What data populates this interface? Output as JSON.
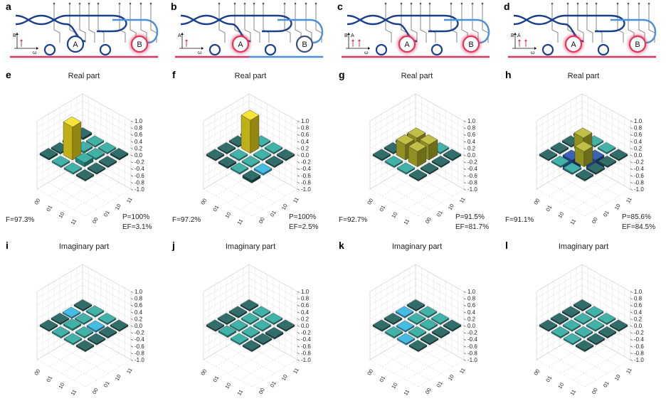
{
  "colors": {
    "teal": "#27a79c",
    "teal_dark": "#155a55",
    "yellow": "#f5e11c",
    "olive": "#b8b72a",
    "blue": "#1f4fa8",
    "cyan": "#2ab3e0",
    "red_glow": "#e0365c",
    "light_blue_wg": "#4d8fd6",
    "dark_blue_wg": "#1c3f8c"
  },
  "schematics": [
    {
      "label": "a",
      "ring_a": "A",
      "ring_b": "B",
      "excited": "B",
      "axis_letters": [
        "B",
        "ω"
      ]
    },
    {
      "label": "b",
      "ring_a": "A",
      "ring_b": "B",
      "excited": "A",
      "axis_letters": [
        "A",
        "ω"
      ]
    },
    {
      "label": "c",
      "ring_a": "A",
      "ring_b": "B",
      "excited": "AB",
      "axis_letters": [
        "B",
        "A",
        "ω"
      ]
    },
    {
      "label": "d",
      "ring_a": "A",
      "ring_b": "B",
      "excited": "AB",
      "axis_letters": [
        "B",
        "A",
        "ω"
      ]
    }
  ],
  "axis": {
    "z_ticks": [
      "1.0",
      "0.8",
      "0.6",
      "0.4",
      "0.2",
      "0.0",
      "-0.2",
      "-0.4",
      "-0.6",
      "-0.8",
      "-1.0"
    ],
    "basis": [
      "00",
      "01",
      "10",
      "11"
    ]
  },
  "real_panels": [
    {
      "label": "e",
      "title": "Real part",
      "fidelity": "F=97.3%",
      "purity": "P=100%",
      "ef": "EF=3.1%"
    },
    {
      "label": "f",
      "title": "Real part",
      "fidelity": "F=97.2%",
      "purity": "P=100%",
      "ef": "EF=2.5%"
    },
    {
      "label": "g",
      "title": "Real part",
      "fidelity": "F=92.7%",
      "purity": "P=91.5%",
      "ef": "EF=81.7%"
    },
    {
      "label": "h",
      "title": "Real part",
      "fidelity": "F=91.1%",
      "purity": "P=85.6%",
      "ef": "EF=84.5%"
    }
  ],
  "imag_panels": [
    {
      "label": "i",
      "title": "Imaginary part"
    },
    {
      "label": "j",
      "title": "Imaginary part"
    },
    {
      "label": "k",
      "title": "Imaginary part"
    },
    {
      "label": "l",
      "title": "Imaginary part"
    }
  ],
  "chart_data": [
    {
      "type": "bar3d",
      "panel": "e",
      "title": "Real part",
      "rows": [
        "00",
        "01",
        "10",
        "11"
      ],
      "cols": [
        "00",
        "01",
        "10",
        "11"
      ],
      "zlim": [
        -1,
        1
      ],
      "values": [
        [
          0.06,
          0,
          0,
          0.05
        ],
        [
          0,
          0.05,
          0.05,
          0
        ],
        [
          0,
          0.97,
          0.12,
          0
        ],
        [
          0.05,
          0,
          0,
          0.03
        ]
      ]
    },
    {
      "type": "bar3d",
      "panel": "f",
      "title": "Real part",
      "rows": [
        "00",
        "01",
        "10",
        "11"
      ],
      "cols": [
        "00",
        "01",
        "10",
        "11"
      ],
      "zlim": [
        -1,
        1
      ],
      "values": [
        [
          0,
          0,
          0,
          0
        ],
        [
          0,
          0.97,
          0,
          0
        ],
        [
          0,
          0,
          0,
          -0.05
        ],
        [
          0,
          -0.05,
          0,
          -0.08
        ]
      ]
    },
    {
      "type": "bar3d",
      "panel": "g",
      "title": "Real part",
      "rows": [
        "00",
        "01",
        "10",
        "11"
      ],
      "cols": [
        "00",
        "01",
        "10",
        "11"
      ],
      "zlim": [
        -1,
        1
      ],
      "values": [
        [
          0,
          0,
          0,
          0
        ],
        [
          0,
          0.45,
          0.45,
          0
        ],
        [
          0,
          0.45,
          0.45,
          0
        ],
        [
          0,
          0,
          0,
          0
        ]
      ]
    },
    {
      "type": "bar3d",
      "panel": "h",
      "title": "Real part",
      "rows": [
        "00",
        "01",
        "10",
        "11"
      ],
      "cols": [
        "00",
        "01",
        "10",
        "11"
      ],
      "zlim": [
        -1,
        1
      ],
      "values": [
        [
          0,
          0,
          0,
          0
        ],
        [
          0,
          0.45,
          -0.42,
          0
        ],
        [
          0,
          -0.42,
          0.45,
          0
        ],
        [
          0,
          0,
          0,
          0
        ]
      ]
    },
    {
      "type": "bar3d",
      "panel": "i",
      "title": "Imaginary part",
      "rows": [
        "00",
        "01",
        "10",
        "11"
      ],
      "cols": [
        "00",
        "01",
        "10",
        "11"
      ],
      "zlim": [
        -1,
        1
      ],
      "values": [
        [
          0,
          0.04,
          0,
          0
        ],
        [
          -0.04,
          0,
          -0.05,
          0
        ],
        [
          0,
          0.05,
          0,
          0
        ],
        [
          0,
          0,
          0,
          0
        ]
      ]
    },
    {
      "type": "bar3d",
      "panel": "j",
      "title": "Imaginary part",
      "rows": [
        "00",
        "01",
        "10",
        "11"
      ],
      "cols": [
        "00",
        "01",
        "10",
        "11"
      ],
      "zlim": [
        -1,
        1
      ],
      "values": [
        [
          0,
          0,
          0,
          0
        ],
        [
          0,
          0,
          0,
          -0.05
        ],
        [
          0,
          0,
          0,
          0
        ],
        [
          0,
          0.05,
          0,
          0
        ]
      ]
    },
    {
      "type": "bar3d",
      "panel": "k",
      "title": "Imaginary part",
      "rows": [
        "00",
        "01",
        "10",
        "11"
      ],
      "cols": [
        "00",
        "01",
        "10",
        "11"
      ],
      "zlim": [
        -1,
        1
      ],
      "values": [
        [
          0,
          0.03,
          0,
          0
        ],
        [
          -0.03,
          0,
          0.04,
          0
        ],
        [
          0,
          -0.04,
          0,
          0.02
        ],
        [
          0,
          0,
          -0.02,
          0
        ]
      ]
    },
    {
      "type": "bar3d",
      "panel": "l",
      "title": "Imaginary part",
      "rows": [
        "00",
        "01",
        "10",
        "11"
      ],
      "cols": [
        "00",
        "01",
        "10",
        "11"
      ],
      "zlim": [
        -1,
        1
      ],
      "values": [
        [
          0,
          0,
          0,
          0
        ],
        [
          0,
          0,
          0,
          0
        ],
        [
          0,
          0,
          0,
          0
        ],
        [
          0,
          0,
          0,
          0
        ]
      ]
    }
  ]
}
